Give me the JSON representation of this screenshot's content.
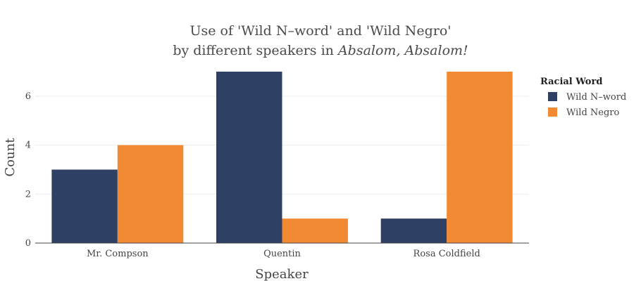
{
  "chart_data": {
    "type": "bar",
    "title_line1": "Use of 'Wild N–word' and 'Wild Negro'",
    "title_line2_prefix": "by different speakers in ",
    "title_line2_italic": "Absalom, Absalom!",
    "xlabel": "Speaker",
    "ylabel": "Count",
    "categories": [
      "Mr. Compson",
      "Quentin",
      "Rosa Coldfield"
    ],
    "series": [
      {
        "name": "Wild N–word",
        "values": [
          3,
          7,
          1
        ],
        "color": "#2e4063"
      },
      {
        "name": "Wild Negro",
        "values": [
          4,
          1,
          7
        ],
        "color": "#f28a34"
      }
    ],
    "ylim": [
      0,
      7.2
    ],
    "yticks": [
      0,
      2,
      4,
      6
    ],
    "grid": true,
    "legend": {
      "title": "Racial Word",
      "placement": "right"
    }
  }
}
